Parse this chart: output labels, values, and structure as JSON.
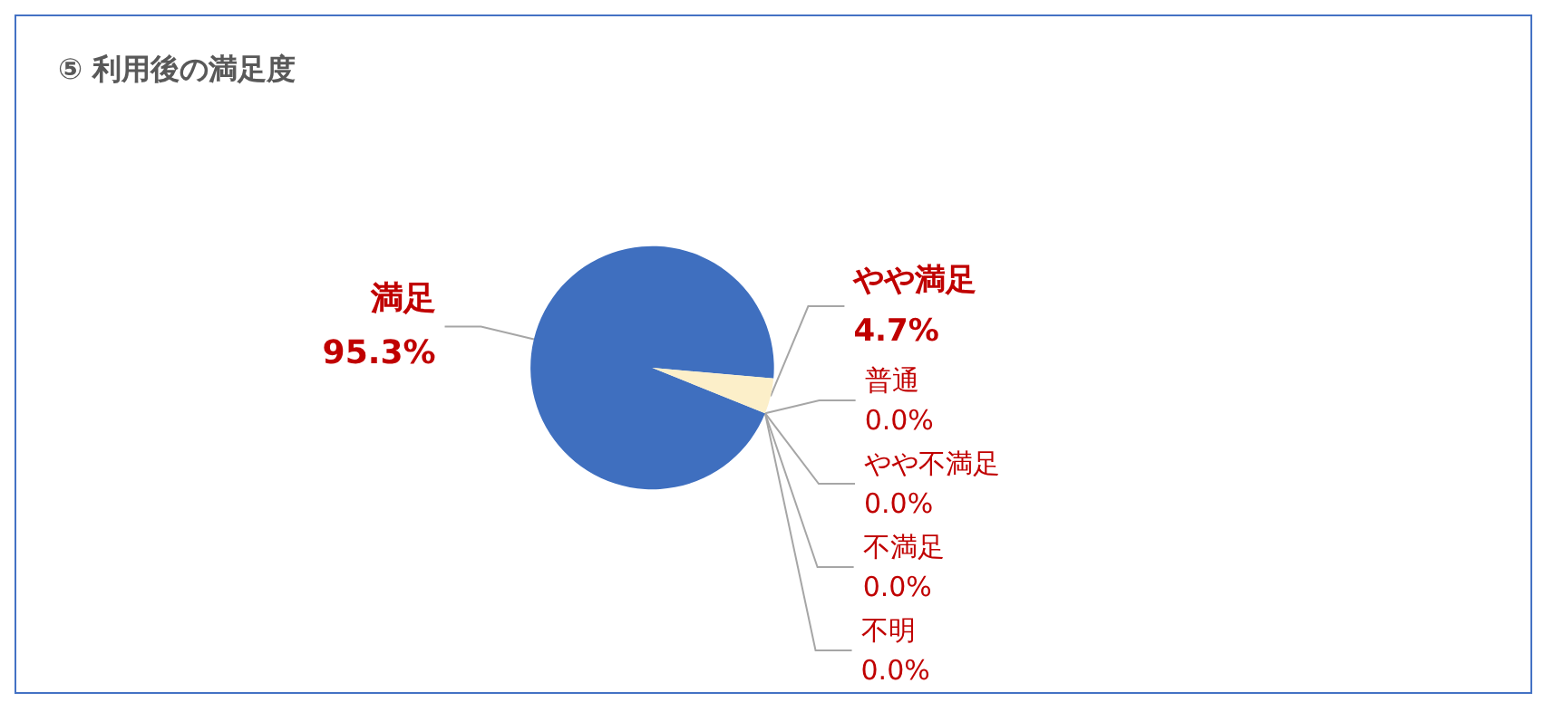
{
  "chart_data": {
    "type": "pie",
    "title": "⑤ 利用後の満足度",
    "categories": [
      "満足",
      "やや満足",
      "普通",
      "やや不満足",
      "不満足",
      "不明"
    ],
    "values": [
      95.3,
      4.7,
      0.0,
      0.0,
      0.0,
      0.0
    ],
    "value_labels": [
      "95.3%",
      "4.7%",
      "0.0%",
      "0.0%",
      "0.0%",
      "0.0%"
    ],
    "colors": [
      "#3f6fbf",
      "#fcefc9",
      "#a5a5a5",
      "#ffc000",
      "#5b9bd5",
      "#70ad47"
    ]
  }
}
